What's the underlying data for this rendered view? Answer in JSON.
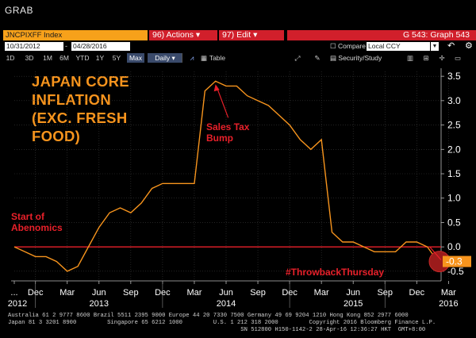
{
  "app": {
    "title": "GRAB"
  },
  "toolbar": {
    "ticker": "JNCPIXFF Index",
    "actions": "96) Actions ▾",
    "edit": "97) Edit ▾",
    "graph_id": "G 543: Graph 543",
    "date_from": "10/31/2012",
    "date_to": "04/28/2016",
    "compare_label": "Compare",
    "currency": "Local CCY",
    "timeframes": [
      "1D",
      "3D",
      "1M",
      "6M",
      "YTD",
      "1Y",
      "5Y",
      "Max"
    ],
    "frequency": "Daily ▾",
    "table_label": "Table",
    "security_study": "Security/Study"
  },
  "chart_data": {
    "type": "line",
    "title": "JAPAN CORE INFLATION (EXC. FRESH FOOD)",
    "title_lines": [
      "JAPAN CORE",
      "INFLATION",
      "(EXC. FRESH",
      "FOOD)"
    ],
    "xlabel": "",
    "ylabel": "",
    "x_ticks": [
      "...",
      "Dec",
      "Mar",
      "Jun",
      "Sep",
      "Dec",
      "Mar",
      "Jun",
      "Sep",
      "Dec",
      "Mar",
      "Jun",
      "Sep",
      "Dec",
      "Mar"
    ],
    "x_years": [
      "2012",
      "2013",
      "2014",
      "2015",
      "2016"
    ],
    "y_ticks": [
      "3.5",
      "3.0",
      "2.5",
      "2.0",
      "1.5",
      "1.0",
      "0.5",
      "0.0",
      "-0.5"
    ],
    "ylim": [
      -0.6,
      3.6
    ],
    "series": [
      {
        "color": "#f7941d",
        "x": [
          "2012-10",
          "2012-11",
          "2012-12",
          "2013-01",
          "2013-02",
          "2013-03",
          "2013-04",
          "2013-05",
          "2013-06",
          "2013-07",
          "2013-08",
          "2013-09",
          "2013-10",
          "2013-11",
          "2013-12",
          "2014-01",
          "2014-02",
          "2014-03",
          "2014-04",
          "2014-05",
          "2014-06",
          "2014-07",
          "2014-08",
          "2014-09",
          "2014-10",
          "2014-11",
          "2014-12",
          "2015-01",
          "2015-02",
          "2015-03",
          "2015-04",
          "2015-05",
          "2015-06",
          "2015-07",
          "2015-08",
          "2015-09",
          "2015-10",
          "2015-11",
          "2015-12",
          "2016-01",
          "2016-02"
        ],
        "values": [
          0.0,
          -0.1,
          -0.2,
          -0.2,
          -0.3,
          -0.5,
          -0.4,
          0.0,
          0.4,
          0.7,
          0.8,
          0.7,
          0.9,
          1.2,
          1.3,
          1.3,
          1.3,
          1.3,
          3.2,
          3.4,
          3.3,
          3.3,
          3.1,
          3.0,
          2.9,
          2.7,
          2.5,
          2.2,
          2.0,
          2.2,
          0.3,
          0.1,
          0.1,
          0.0,
          -0.1,
          -0.1,
          -0.1,
          0.1,
          0.1,
          0.0,
          -0.3
        ]
      }
    ],
    "reference_line": {
      "value": 0.0,
      "color": "#e8202a"
    },
    "last_value_label": "-0.3",
    "annotations": [
      {
        "text": [
          "Sales Tax",
          "Bump"
        ],
        "color": "#e8202a"
      },
      {
        "text": [
          "Start of",
          "Abenomics"
        ],
        "color": "#e8202a"
      },
      {
        "text": [
          "#ThrowbackThursday"
        ],
        "color": "#e8202a"
      }
    ]
  },
  "footer": {
    "line1": "Australia 61 2 9777 8600 Brazil 5511 2395 9000 Europe 44 20 7330 7500 Germany 49 69 9204 1210 Hong Kong 852 2977 6000",
    "line2": "Japan 81 3 3201 8900         Singapore 65 6212 1000         U.S. 1 212 318 2000         Copyright 2016 Bloomberg Finance L.P.",
    "line3": "                                                                    SN 512800 H150-1142-2 28-Apr-16 12:36:27 HKT  GMT+8:00"
  }
}
